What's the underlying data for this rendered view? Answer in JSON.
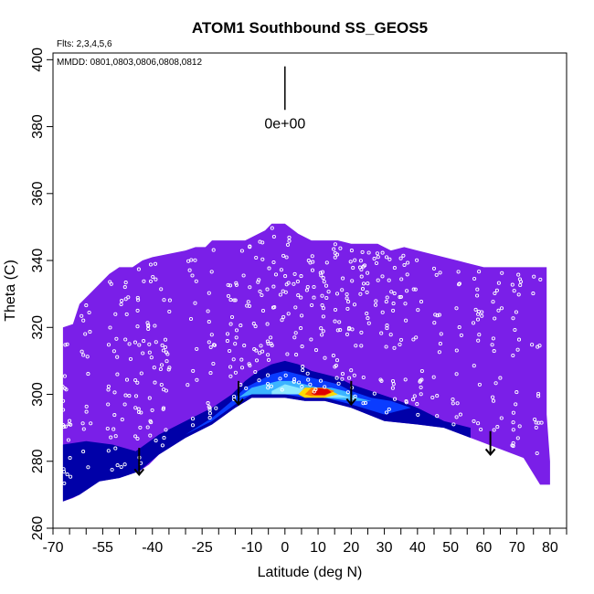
{
  "chart_data": {
    "type": "heatmap",
    "title": "ATOM1 Southbound SS_GEOS5",
    "flights_note": "Flts: 2,3,4,5,6",
    "dates_note": "MMDD: 0801,0803,0806,0808,0812",
    "xlabel": "Latitude (deg N)",
    "ylabel": "Theta (C)",
    "xlim": [
      -70,
      85
    ],
    "ylim": [
      260,
      402
    ],
    "x_tick_labels": [
      "-70",
      "-55",
      "-40",
      "-25",
      "-10",
      "0",
      "10",
      "20",
      "30",
      "40",
      "50",
      "60",
      "70",
      "80"
    ],
    "x_tick_values": [
      -70,
      -55,
      -40,
      -25,
      -10,
      0,
      10,
      20,
      30,
      40,
      50,
      60,
      70,
      80
    ],
    "x_minor_ticks": [
      -65,
      -60,
      -50,
      -45,
      -35,
      -30,
      -20,
      -15,
      -5,
      5,
      15,
      25,
      35,
      45,
      55,
      65,
      75,
      85
    ],
    "y_ticks": [
      260,
      280,
      300,
      320,
      340,
      360,
      380,
      400
    ],
    "scale_label": "0e+00",
    "scale_bar": {
      "x": 0,
      "y_top": 398,
      "y_bottom": 385
    },
    "colors": {
      "background_field": "#7a1fe8",
      "dark_blue": "#0000a8",
      "medium_blue": "#0a3cff",
      "light_blue": "#3cb4ff",
      "cyan": "#8ee8ff",
      "yellow": "#ffd800",
      "orange": "#ff7a00",
      "red": "#e00000",
      "points": "#ffffff"
    },
    "upper_boundary": [
      [
        -67,
        320
      ],
      [
        -64,
        321
      ],
      [
        -62,
        327
      ],
      [
        -59,
        330
      ],
      [
        -56,
        333
      ],
      [
        -53,
        336
      ],
      [
        -50,
        338
      ],
      [
        -46,
        338
      ],
      [
        -43,
        340
      ],
      [
        -40,
        341
      ],
      [
        -35,
        342
      ],
      [
        -30,
        343
      ],
      [
        -27,
        344
      ],
      [
        -24,
        344
      ],
      [
        -22,
        346
      ],
      [
        -18,
        346
      ],
      [
        -12,
        346
      ],
      [
        -6,
        349
      ],
      [
        -4,
        351
      ],
      [
        0,
        351
      ],
      [
        4,
        348
      ],
      [
        8,
        346
      ],
      [
        12,
        346
      ],
      [
        16,
        346
      ],
      [
        20,
        345
      ],
      [
        24,
        345
      ],
      [
        28,
        345
      ],
      [
        32,
        343
      ],
      [
        36,
        344
      ],
      [
        40,
        343
      ],
      [
        44,
        342
      ],
      [
        48,
        341
      ],
      [
        52,
        340
      ],
      [
        56,
        339
      ],
      [
        60,
        338
      ],
      [
        64,
        338
      ],
      [
        68,
        338
      ],
      [
        72,
        338
      ],
      [
        76,
        338
      ],
      [
        79,
        338
      ],
      [
        79,
        294
      ],
      [
        80,
        280
      ],
      [
        80,
        273
      ],
      [
        77,
        273
      ]
    ],
    "lower_boundary": [
      [
        77,
        273
      ],
      [
        72,
        281
      ],
      [
        64,
        284
      ],
      [
        56,
        287
      ],
      [
        48,
        290
      ],
      [
        40,
        291
      ],
      [
        30,
        292
      ],
      [
        20,
        296
      ],
      [
        12,
        298
      ],
      [
        6,
        298
      ],
      [
        0,
        299
      ],
      [
        -6,
        299
      ],
      [
        -10,
        299
      ],
      [
        -15,
        296
      ],
      [
        -22,
        291
      ],
      [
        -30,
        287
      ],
      [
        -38,
        282
      ],
      [
        -41,
        279
      ],
      [
        -44,
        277
      ],
      [
        -50,
        275
      ],
      [
        -56,
        274
      ],
      [
        -62,
        270
      ],
      [
        -64,
        269
      ],
      [
        -67,
        268
      ],
      [
        -67,
        320
      ]
    ],
    "color_bands": [
      {
        "color": "dark_blue",
        "polygon": [
          [
            -67,
            285
          ],
          [
            -60,
            286
          ],
          [
            -52,
            285
          ],
          [
            -45,
            283
          ],
          [
            -38,
            288
          ],
          [
            -30,
            292
          ],
          [
            -22,
            296
          ],
          [
            -16,
            300
          ],
          [
            -12,
            304
          ],
          [
            -8,
            307
          ],
          [
            -4,
            309
          ],
          [
            0,
            310
          ],
          [
            4,
            309
          ],
          [
            8,
            307
          ],
          [
            12,
            306
          ],
          [
            16,
            305
          ],
          [
            20,
            303
          ],
          [
            26,
            301
          ],
          [
            32,
            299
          ],
          [
            40,
            296
          ],
          [
            48,
            292
          ],
          [
            56,
            290
          ],
          [
            56,
            287
          ],
          [
            48,
            290
          ],
          [
            40,
            291
          ],
          [
            30,
            292
          ],
          [
            20,
            296
          ],
          [
            12,
            298
          ],
          [
            6,
            298
          ],
          [
            0,
            299
          ],
          [
            -6,
            299
          ],
          [
            -10,
            299
          ],
          [
            -15,
            296
          ],
          [
            -22,
            291
          ],
          [
            -30,
            287
          ],
          [
            -38,
            282
          ],
          [
            -44,
            277
          ],
          [
            -50,
            275
          ],
          [
            -56,
            274
          ],
          [
            -62,
            270
          ],
          [
            -67,
            268
          ]
        ]
      },
      {
        "color": "medium_blue",
        "polygon": [
          [
            -30,
            288
          ],
          [
            -22,
            293
          ],
          [
            -16,
            298
          ],
          [
            -12,
            302
          ],
          [
            -8,
            304
          ],
          [
            -4,
            306
          ],
          [
            0,
            307
          ],
          [
            4,
            306
          ],
          [
            8,
            305
          ],
          [
            12,
            304
          ],
          [
            16,
            303
          ],
          [
            20,
            301
          ],
          [
            26,
            299
          ],
          [
            32,
            298
          ],
          [
            38,
            296
          ],
          [
            30,
            294
          ],
          [
            20,
            297
          ],
          [
            12,
            299
          ],
          [
            6,
            299
          ],
          [
            0,
            300
          ],
          [
            -6,
            300
          ],
          [
            -10,
            300
          ],
          [
            -15,
            297
          ],
          [
            -22,
            292
          ]
        ]
      },
      {
        "color": "light_blue",
        "polygon": [
          [
            -14,
            299
          ],
          [
            -10,
            302
          ],
          [
            -6,
            303
          ],
          [
            -2,
            304
          ],
          [
            2,
            304
          ],
          [
            6,
            303
          ],
          [
            10,
            302
          ],
          [
            14,
            302
          ],
          [
            18,
            301
          ],
          [
            22,
            299
          ],
          [
            26,
            298
          ],
          [
            20,
            298
          ],
          [
            12,
            299
          ],
          [
            6,
            300
          ],
          [
            0,
            300
          ],
          [
            -6,
            300
          ],
          [
            -10,
            300
          ]
        ]
      },
      {
        "color": "cyan",
        "polygon": [
          [
            -4,
            301
          ],
          [
            0,
            303
          ],
          [
            4,
            302
          ],
          [
            8,
            301
          ],
          [
            12,
            301
          ],
          [
            16,
            300
          ],
          [
            20,
            299
          ],
          [
            12,
            299
          ],
          [
            6,
            300
          ],
          [
            0,
            300
          ],
          [
            -4,
            300
          ]
        ]
      },
      {
        "color": "yellow",
        "polygon": [
          [
            4,
            300
          ],
          [
            6,
            302
          ],
          [
            10,
            302
          ],
          [
            14,
            301
          ],
          [
            16,
            300
          ],
          [
            12,
            299
          ],
          [
            6,
            299
          ]
        ]
      },
      {
        "color": "orange",
        "polygon": [
          [
            6,
            300
          ],
          [
            8,
            302
          ],
          [
            12,
            302
          ],
          [
            15,
            301
          ],
          [
            12,
            299.5
          ],
          [
            8,
            299.5
          ]
        ]
      },
      {
        "color": "red",
        "polygon": [
          [
            8,
            300.2
          ],
          [
            10,
            301.8
          ],
          [
            13,
            301.5
          ],
          [
            14,
            300.6
          ],
          [
            12,
            299.8
          ],
          [
            9,
            299.8
          ]
        ]
      }
    ],
    "arrows": [
      {
        "x": -44,
        "y_from": 284,
        "y_to": 276
      },
      {
        "x": -14,
        "y_from": 304,
        "y_to": 297
      },
      {
        "x": 20,
        "y_from": 304,
        "y_to": 297
      },
      {
        "x": 62,
        "y_from": 289,
        "y_to": 282
      }
    ]
  }
}
